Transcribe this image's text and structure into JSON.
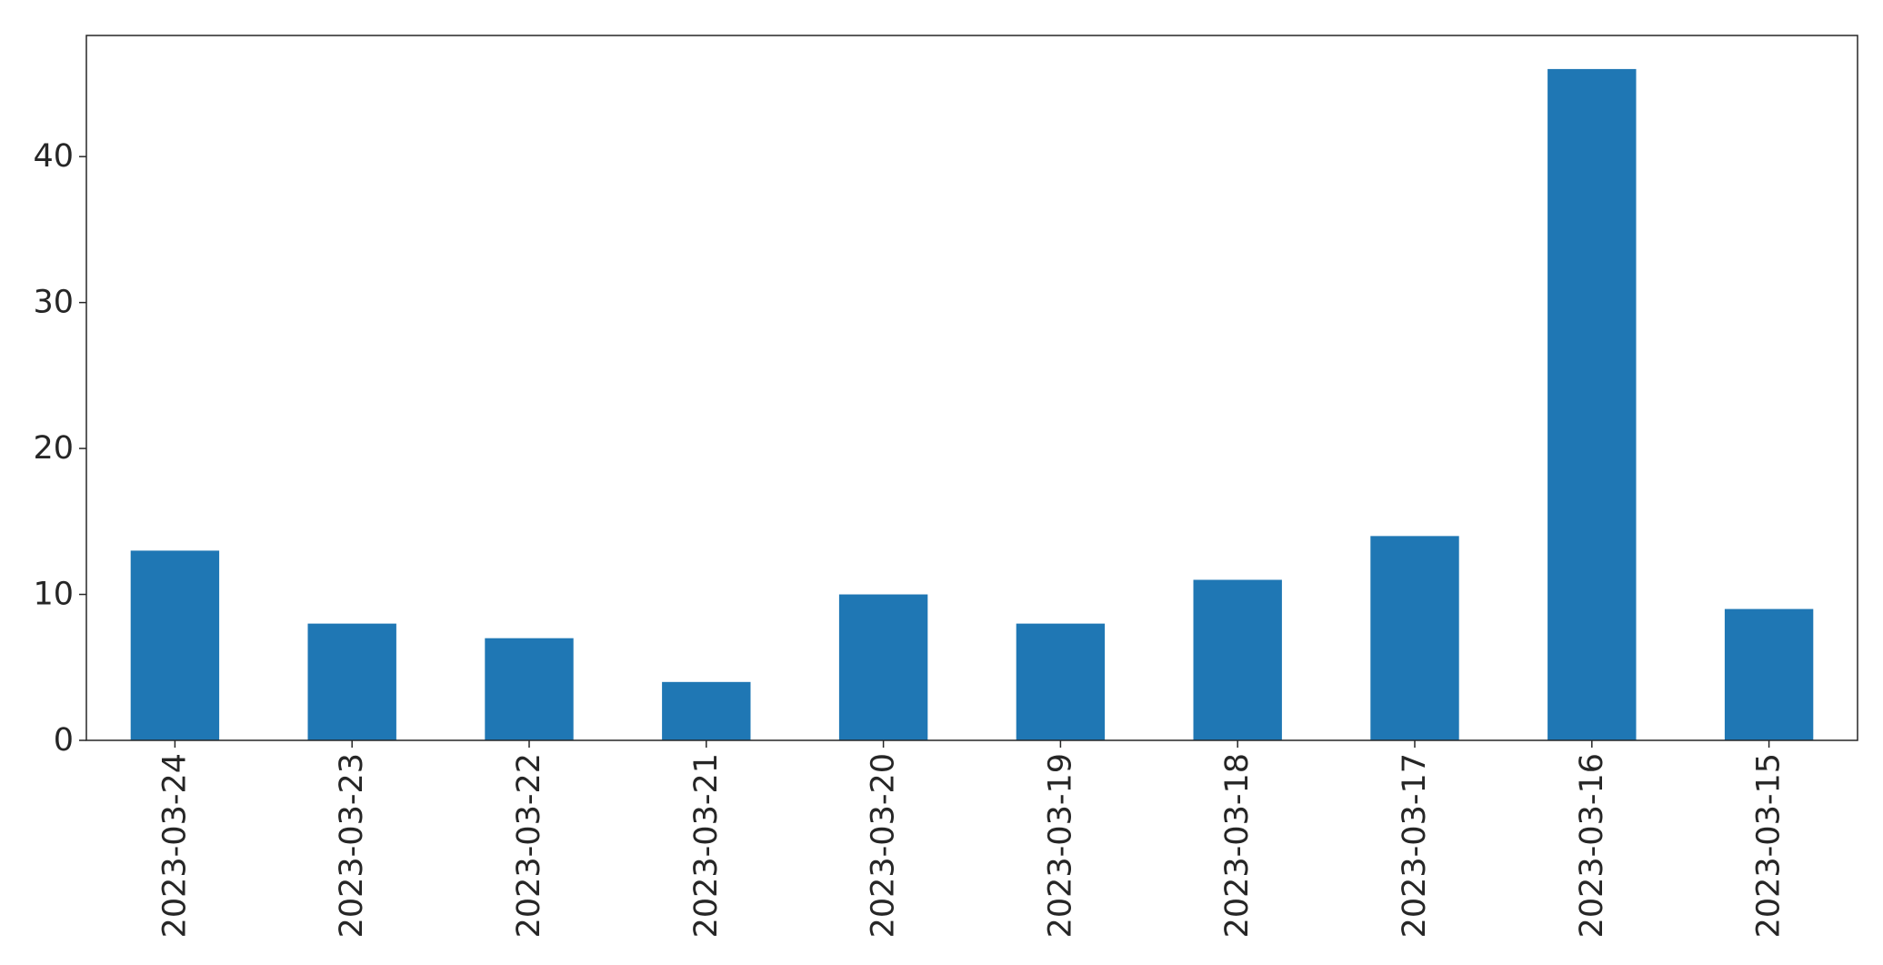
{
  "chart_data": {
    "type": "bar",
    "categories": [
      "2023-03-24",
      "2023-03-23",
      "2023-03-22",
      "2023-03-21",
      "2023-03-20",
      "2023-03-19",
      "2023-03-18",
      "2023-03-17",
      "2023-03-16",
      "2023-03-15"
    ],
    "values": [
      13,
      8,
      7,
      4,
      10,
      8,
      11,
      14,
      46,
      9
    ],
    "title": "",
    "xlabel": "",
    "ylabel": "",
    "ylim": [
      0,
      48.3
    ],
    "yticks": [
      "0",
      "10",
      "20",
      "30",
      "40"
    ],
    "grid": false,
    "legend": "none",
    "x_tick_rotation": "vertical",
    "bar_color": "#1f77b4"
  }
}
